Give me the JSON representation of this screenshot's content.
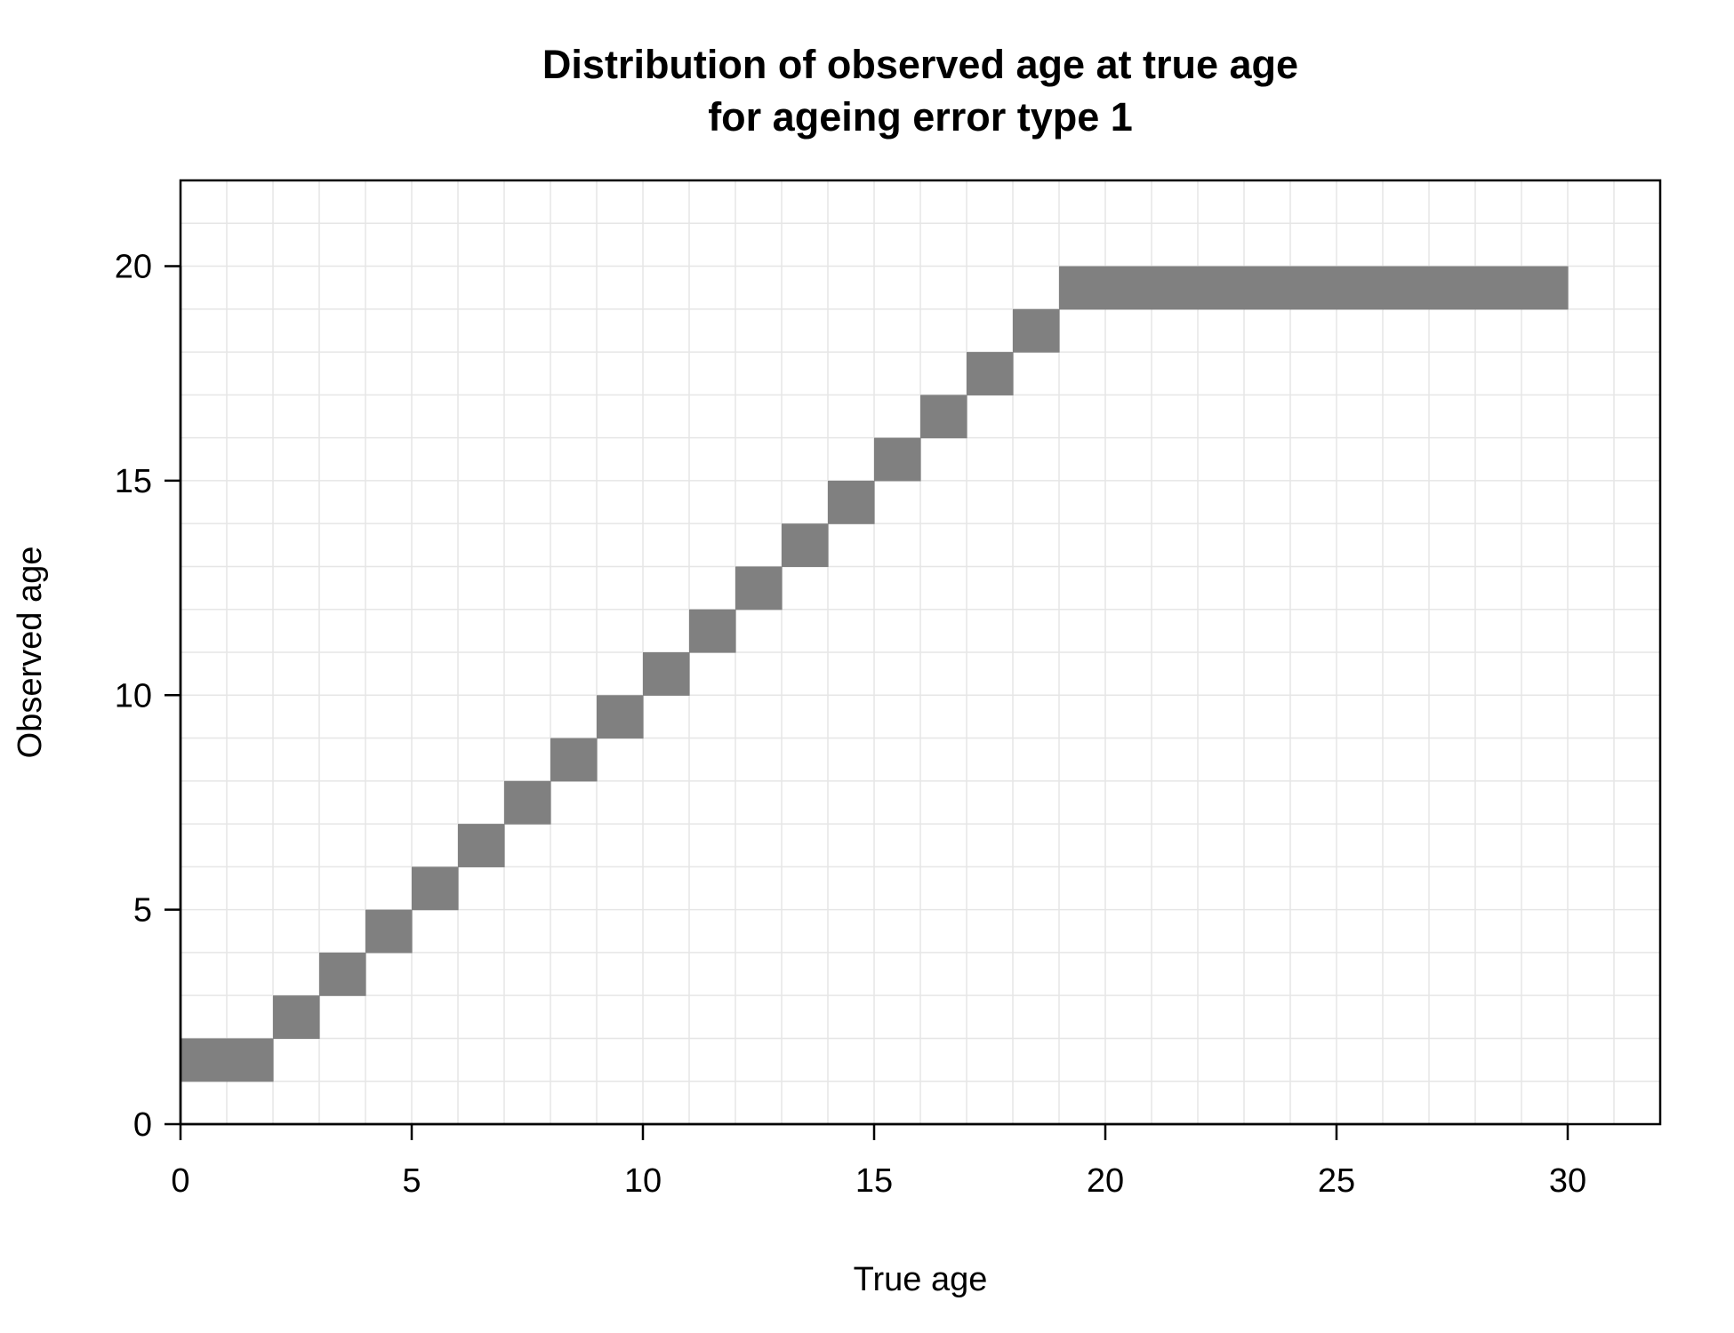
{
  "chart_data": {
    "type": "heatmap",
    "title_lines": [
      "Distribution of observed age at true age",
      "for ageing error type 1"
    ],
    "xlabel": "True age",
    "ylabel": "Observed age",
    "xlim": [
      0,
      32
    ],
    "ylim": [
      0,
      22
    ],
    "x_ticks": [
      0,
      5,
      10,
      15,
      20,
      25,
      30
    ],
    "y_ticks": [
      0,
      5,
      10,
      15,
      20
    ],
    "x_tick_labels": [
      "0",
      "5",
      "10",
      "15",
      "20",
      "25",
      "30"
    ],
    "y_tick_labels": [
      "0",
      "5",
      "10",
      "15",
      "20"
    ],
    "grid": true,
    "cell_color": "#808080",
    "grid_color": "#e6e6e6",
    "cells": [
      {
        "true_age": 0,
        "observed_age": 1
      },
      {
        "true_age": 1,
        "observed_age": 1
      },
      {
        "true_age": 2,
        "observed_age": 2
      },
      {
        "true_age": 3,
        "observed_age": 3
      },
      {
        "true_age": 4,
        "observed_age": 4
      },
      {
        "true_age": 5,
        "observed_age": 5
      },
      {
        "true_age": 6,
        "observed_age": 6
      },
      {
        "true_age": 7,
        "observed_age": 7
      },
      {
        "true_age": 8,
        "observed_age": 8
      },
      {
        "true_age": 9,
        "observed_age": 9
      },
      {
        "true_age": 10,
        "observed_age": 10
      },
      {
        "true_age": 11,
        "observed_age": 11
      },
      {
        "true_age": 12,
        "observed_age": 12
      },
      {
        "true_age": 13,
        "observed_age": 13
      },
      {
        "true_age": 14,
        "observed_age": 14
      },
      {
        "true_age": 15,
        "observed_age": 15
      },
      {
        "true_age": 16,
        "observed_age": 16
      },
      {
        "true_age": 17,
        "observed_age": 17
      },
      {
        "true_age": 18,
        "observed_age": 18
      },
      {
        "true_age": 19,
        "observed_age": 19
      },
      {
        "true_age": 20,
        "observed_age": 19
      },
      {
        "true_age": 21,
        "observed_age": 19
      },
      {
        "true_age": 22,
        "observed_age": 19
      },
      {
        "true_age": 23,
        "observed_age": 19
      },
      {
        "true_age": 24,
        "observed_age": 19
      },
      {
        "true_age": 25,
        "observed_age": 19
      },
      {
        "true_age": 26,
        "observed_age": 19
      },
      {
        "true_age": 27,
        "observed_age": 19
      },
      {
        "true_age": 28,
        "observed_age": 19
      },
      {
        "true_age": 29,
        "observed_age": 19
      }
    ]
  }
}
